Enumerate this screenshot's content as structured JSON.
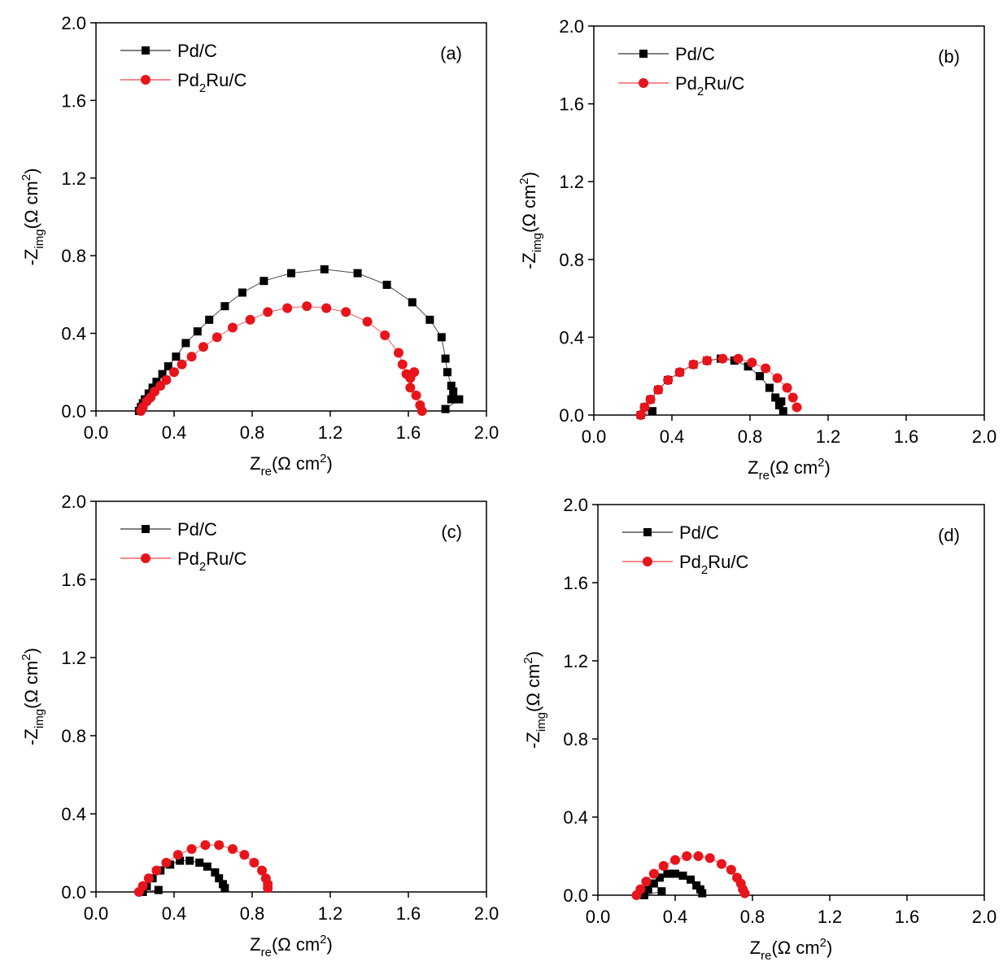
{
  "chart_data": [
    {
      "type": "line",
      "annotation": "(a)",
      "xlabel": [
        "Z",
        "re",
        "(Ω cm",
        "2",
        ")"
      ],
      "ylabel": [
        "-Z",
        "img",
        "(Ω cm",
        "2",
        ")"
      ],
      "xlim": [
        0,
        2
      ],
      "ylim": [
        0,
        2
      ],
      "xticks": [
        {
          "value": 0,
          "label": "0.0"
        },
        0.4,
        0.8,
        1.2,
        1.6,
        {
          "value": 2,
          "label": "2.0"
        }
      ],
      "yticks": [
        {
          "value": 0,
          "label": "0.0"
        },
        0.4,
        0.8,
        1.2,
        1.6,
        {
          "value": 2,
          "label": "2.0"
        }
      ],
      "series": [
        {
          "name": "Pd/C",
          "color": "#000000",
          "marker": "square",
          "x": [
            0.22,
            0.23,
            0.24,
            0.25,
            0.27,
            0.29,
            0.31,
            0.34,
            0.37,
            0.41,
            0.46,
            0.52,
            0.58,
            0.66,
            0.75,
            0.86,
            1.0,
            1.17,
            1.34,
            1.49,
            1.62,
            1.71,
            1.77,
            1.79,
            1.8,
            1.82,
            1.83,
            1.82,
            1.86,
            1.79
          ],
          "values": [
            0,
            0.02,
            0.04,
            0.06,
            0.09,
            0.12,
            0.15,
            0.19,
            0.23,
            0.28,
            0.35,
            0.41,
            0.47,
            0.54,
            0.61,
            0.67,
            0.71,
            0.73,
            0.71,
            0.65,
            0.56,
            0.47,
            0.38,
            0.27,
            0.2,
            0.13,
            0.1,
            0.06,
            0.06,
            0.01
          ]
        },
        {
          "name": "Pd2Ru/C",
          "color": "#e8141b",
          "marker": "circle",
          "x": [
            0.23,
            0.24,
            0.26,
            0.28,
            0.3,
            0.33,
            0.36,
            0.4,
            0.44,
            0.49,
            0.55,
            0.62,
            0.7,
            0.79,
            0.88,
            0.98,
            1.08,
            1.18,
            1.28,
            1.39,
            1.48,
            1.55,
            1.57,
            1.59,
            1.61,
            1.63,
            1.61,
            1.64,
            1.66,
            1.67
          ],
          "values": [
            0,
            0.02,
            0.05,
            0.07,
            0.1,
            0.13,
            0.16,
            0.2,
            0.24,
            0.28,
            0.33,
            0.38,
            0.43,
            0.47,
            0.51,
            0.53,
            0.54,
            0.53,
            0.51,
            0.46,
            0.39,
            0.3,
            0.24,
            0.19,
            0.17,
            0.2,
            0.12,
            0.08,
            0.03,
            0
          ]
        }
      ]
    },
    {
      "type": "line",
      "annotation": "(b)",
      "xlabel": [
        "Z",
        "re",
        "(Ω cm",
        "2",
        ")"
      ],
      "ylabel": [
        "-Z",
        "img",
        "(Ω cm",
        "2",
        ")"
      ],
      "xlim": [
        0,
        2
      ],
      "ylim": [
        0,
        2
      ],
      "xticks": [
        {
          "value": 0,
          "label": "0.0"
        },
        0.4,
        0.8,
        1.2,
        1.6,
        {
          "value": 2,
          "label": "2.0"
        }
      ],
      "yticks": [
        {
          "value": 0,
          "label": "0.0"
        },
        0.4,
        0.8,
        1.2,
        1.6,
        {
          "value": 2,
          "label": "2.0"
        }
      ],
      "series": [
        {
          "name": "Pd/C",
          "color": "#000000",
          "marker": "square",
          "x": [
            0.3,
            0.24,
            0.26,
            0.29,
            0.33,
            0.38,
            0.44,
            0.51,
            0.58,
            0.65,
            0.72,
            0.79,
            0.85,
            0.9,
            0.93,
            0.95,
            0.97,
            0.96
          ],
          "values": [
            0.02,
            0,
            0.04,
            0.08,
            0.13,
            0.18,
            0.22,
            0.26,
            0.28,
            0.29,
            0.28,
            0.25,
            0.2,
            0.14,
            0.09,
            0.05,
            0.02,
            0.07
          ]
        },
        {
          "name": "Pd2Ru/C",
          "color": "#e8141b",
          "marker": "circle",
          "x": [
            0.24,
            0.26,
            0.29,
            0.33,
            0.38,
            0.44,
            0.51,
            0.58,
            0.66,
            0.74,
            0.81,
            0.88,
            0.94,
            0.99,
            1.02,
            1.04
          ],
          "values": [
            0,
            0.04,
            0.08,
            0.13,
            0.18,
            0.22,
            0.26,
            0.28,
            0.29,
            0.29,
            0.27,
            0.24,
            0.19,
            0.14,
            0.09,
            0.04
          ]
        }
      ]
    },
    {
      "type": "line",
      "annotation": "(c)",
      "xlabel": [
        "Z",
        "re",
        "(Ω cm",
        "2",
        ")"
      ],
      "ylabel": [
        "-Z",
        "img",
        "(Ω cm",
        "2",
        ")"
      ],
      "xlim": [
        0,
        2
      ],
      "ylim": [
        0,
        2
      ],
      "xticks": [
        {
          "value": 0,
          "label": "0.0"
        },
        0.4,
        0.8,
        1.2,
        1.6,
        {
          "value": 2,
          "label": "2.0"
        }
      ],
      "yticks": [
        {
          "value": 0,
          "label": "0.0"
        },
        0.4,
        0.8,
        1.2,
        1.6,
        {
          "value": 2,
          "label": "2.0"
        }
      ],
      "series": [
        {
          "name": "Pd/C",
          "color": "#000000",
          "marker": "square",
          "x": [
            0.32,
            0.24,
            0.26,
            0.29,
            0.33,
            0.38,
            0.43,
            0.48,
            0.53,
            0.57,
            0.61,
            0.63,
            0.65,
            0.66
          ],
          "values": [
            0.01,
            0,
            0.03,
            0.07,
            0.11,
            0.14,
            0.16,
            0.16,
            0.15,
            0.13,
            0.1,
            0.07,
            0.04,
            0.02
          ]
        },
        {
          "name": "Pd2Ru/C",
          "color": "#e8141b",
          "marker": "circle",
          "x": [
            0.22,
            0.24,
            0.27,
            0.31,
            0.36,
            0.42,
            0.49,
            0.56,
            0.63,
            0.7,
            0.76,
            0.81,
            0.85,
            0.87,
            0.88,
            0.88
          ],
          "values": [
            0,
            0.03,
            0.07,
            0.11,
            0.15,
            0.19,
            0.22,
            0.24,
            0.24,
            0.22,
            0.19,
            0.15,
            0.11,
            0.07,
            0.04,
            0.02
          ]
        }
      ]
    },
    {
      "type": "line",
      "annotation": "(d)",
      "xlabel": [
        "Z",
        "re",
        "(Ω cm",
        "2",
        ")"
      ],
      "ylabel": [
        "-Z",
        "img",
        "(Ω cm",
        "2",
        ")"
      ],
      "xlim": [
        0,
        2
      ],
      "ylim": [
        0,
        2
      ],
      "xticks": [
        {
          "value": 0,
          "label": "0.0"
        },
        0.4,
        0.8,
        1.2,
        1.6,
        {
          "value": 2,
          "label": "2.0"
        }
      ],
      "yticks": [
        {
          "value": 0,
          "label": "0.0"
        },
        0.4,
        0.8,
        1.2,
        1.6,
        {
          "value": 2,
          "label": "2.0"
        }
      ],
      "series": [
        {
          "name": "Pd/C",
          "color": "#000000",
          "marker": "square",
          "x": [
            0.33,
            0.24,
            0.26,
            0.29,
            0.32,
            0.36,
            0.4,
            0.44,
            0.48,
            0.51,
            0.53,
            0.54
          ],
          "values": [
            0.02,
            0,
            0.03,
            0.06,
            0.09,
            0.11,
            0.11,
            0.1,
            0.08,
            0.05,
            0.03,
            0.01
          ]
        },
        {
          "name": "Pd2Ru/C",
          "color": "#e8141b",
          "marker": "circle",
          "x": [
            0.2,
            0.22,
            0.25,
            0.29,
            0.34,
            0.4,
            0.46,
            0.52,
            0.58,
            0.64,
            0.69,
            0.72,
            0.74,
            0.75,
            0.76
          ],
          "values": [
            0,
            0.03,
            0.07,
            0.11,
            0.15,
            0.18,
            0.2,
            0.2,
            0.19,
            0.16,
            0.13,
            0.09,
            0.06,
            0.03,
            0.01
          ]
        }
      ]
    }
  ]
}
